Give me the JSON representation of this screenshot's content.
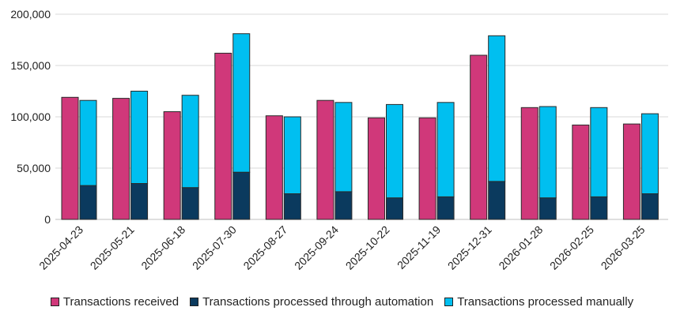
{
  "chart_data": {
    "type": "bar",
    "categories": [
      "2025-04-23",
      "2025-05-21",
      "2025-06-18",
      "2025-07-30",
      "2025-08-27",
      "2025-09-24",
      "2025-10-22",
      "2025-11-19",
      "2025-12-31",
      "2026-01-28",
      "2026-02-25",
      "2026-03-25"
    ],
    "series": [
      {
        "name": "Transactions received",
        "values": [
          119000,
          118000,
          105000,
          162000,
          101000,
          116000,
          99000,
          99000,
          160000,
          109000,
          92000,
          93000
        ],
        "color": "#d0387a"
      },
      {
        "name": "Transactions processed through automation",
        "values": [
          33000,
          35000,
          31000,
          46000,
          25000,
          27000,
          21000,
          22000,
          37000,
          21000,
          22000,
          25000
        ],
        "color": "#0b3a5e",
        "stack": "processed"
      },
      {
        "name": "Transactions processed manually",
        "values": [
          83000,
          90000,
          90000,
          135000,
          75000,
          87000,
          91000,
          92000,
          142000,
          89000,
          87000,
          78000
        ],
        "color": "#00bff0",
        "stack": "processed"
      }
    ],
    "ylim": [
      0,
      200000
    ],
    "yticks": [
      "0",
      "50,000",
      "100,000",
      "150,000",
      "200,000"
    ],
    "ytick_values": [
      0,
      50000,
      100000,
      150000,
      200000
    ],
    "grid": true,
    "legend_position": "bottom"
  }
}
